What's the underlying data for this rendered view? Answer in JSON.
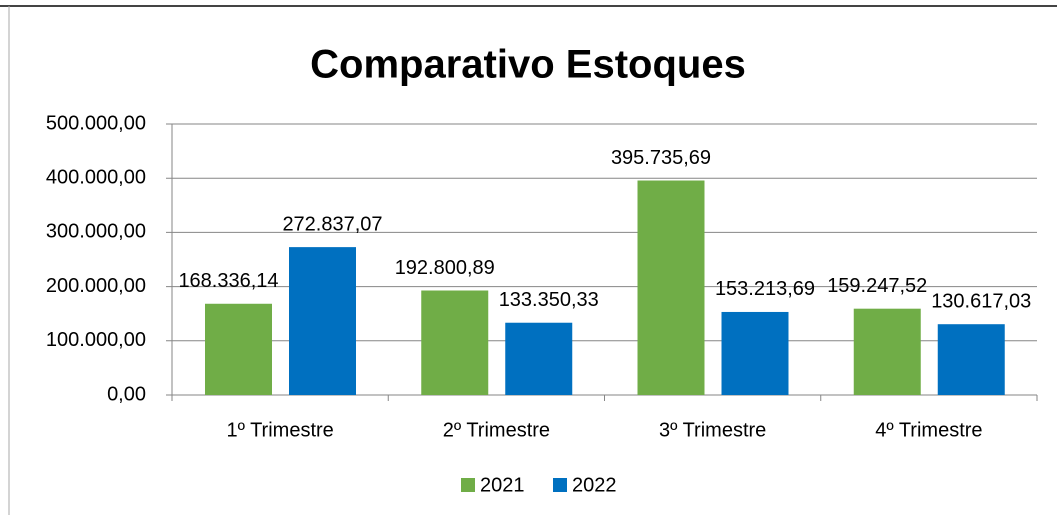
{
  "chart_data": {
    "type": "bar",
    "title": "Comparativo Estoques",
    "categories": [
      "1º Trimestre",
      "2º Trimestre",
      "3º Trimestre",
      "4º Trimestre"
    ],
    "series": [
      {
        "name": "2021",
        "color": "#70ad47",
        "values": [
          168336.14,
          192800.89,
          395735.69,
          159247.52
        ],
        "value_labels": [
          "168.336,14",
          "192.800,89",
          "395.735,69",
          "159.247,52"
        ]
      },
      {
        "name": "2022",
        "color": "#0070c0",
        "values": [
          272837.07,
          133350.33,
          153213.69,
          130617.03
        ],
        "value_labels": [
          "272.837,07",
          "133.350,33",
          "153.213,69",
          "130.617,03"
        ]
      }
    ],
    "ylim": [
      0,
      500000
    ],
    "yticks": [
      {
        "value": 0,
        "label": "0,00"
      },
      {
        "value": 100000,
        "label": "100.000,00"
      },
      {
        "value": 200000,
        "label": "200.000,00"
      },
      {
        "value": 300000,
        "label": "300.000,00"
      },
      {
        "value": 400000,
        "label": "400.000,00"
      },
      {
        "value": 500000,
        "label": "500.000,00"
      }
    ],
    "grid": true,
    "legend": "bottom"
  }
}
